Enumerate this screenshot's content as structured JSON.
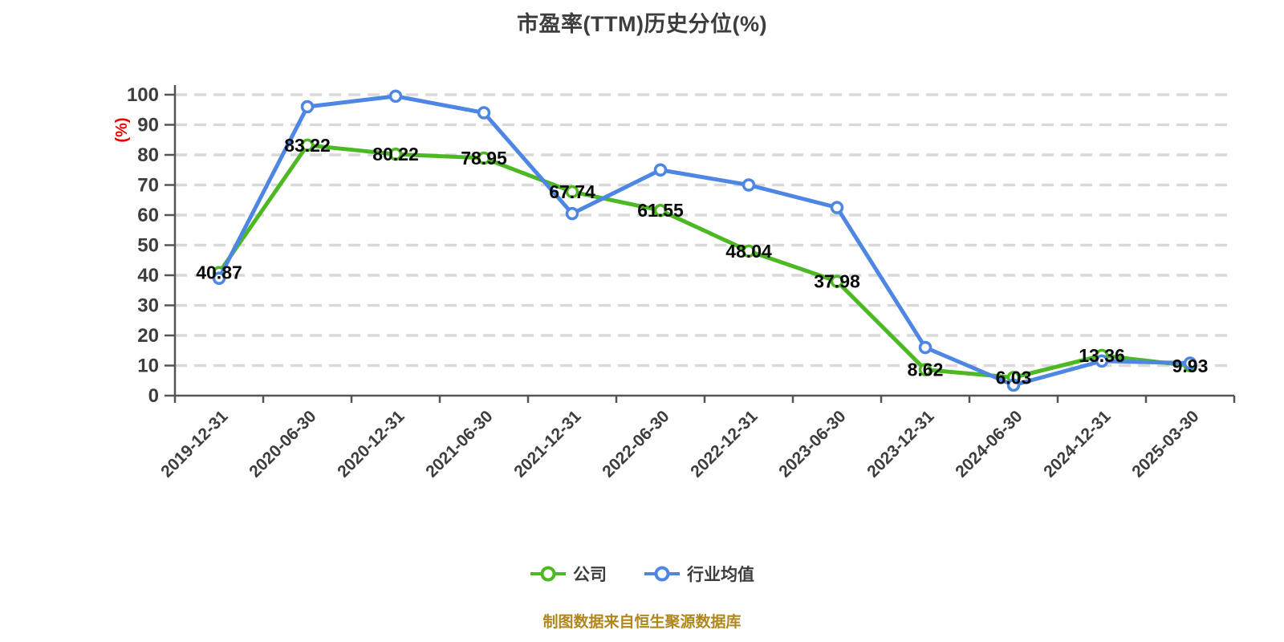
{
  "title": "市盈率(TTM)历史分位(%)",
  "footer": "制图数据来自恒生聚源数据库",
  "legend": {
    "items": [
      {
        "label": "公司",
        "color": "#4cb822"
      },
      {
        "label": "行业均值",
        "color": "#4e86e4"
      }
    ]
  },
  "chart_data": {
    "type": "line",
    "title": "市盈率(TTM)历史分位(%)",
    "xlabel": "",
    "ylabel": "(%)",
    "ylim": [
      0,
      100
    ],
    "ytick_step": 10,
    "grid": "dashed-horizontal",
    "legend_position": "bottom",
    "categories": [
      "2019-12-31",
      "2020-06-30",
      "2020-12-31",
      "2021-06-30",
      "2021-12-31",
      "2022-06-30",
      "2022-12-31",
      "2023-06-30",
      "2023-12-31",
      "2024-06-30",
      "2024-12-31",
      "2025-03-30"
    ],
    "series": [
      {
        "name": "公司",
        "color": "#4cb822",
        "values": [
          40.87,
          83.22,
          80.22,
          78.95,
          67.74,
          61.55,
          48.04,
          37.98,
          8.62,
          6.03,
          13.36,
          9.93
        ],
        "data_labels": true,
        "labels": [
          "40.87",
          "83.22",
          "80.22",
          "78.95",
          "67.74",
          "61.55",
          "48.04",
          "37.98",
          "8.62",
          "6.03",
          "13.36",
          "9.93"
        ]
      },
      {
        "name": "行业均值",
        "color": "#4e86e4",
        "values": [
          39,
          96,
          99.5,
          94,
          60.5,
          75,
          70,
          62.5,
          16,
          3.5,
          11.5,
          10.8
        ],
        "data_labels": false,
        "labels": []
      }
    ],
    "colors": {
      "grid": "#d9d9d9",
      "axis": "#555555",
      "tick_text": "#3d3d3d",
      "data_label": "#0a0a0a",
      "axis_name": "#ee0000",
      "marker_fill": "#ffffff"
    }
  }
}
